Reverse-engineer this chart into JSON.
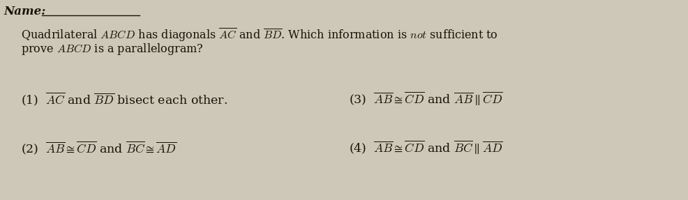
{
  "background_color": "#cec8b8",
  "text_color": "#1a1208",
  "name_label": "Name:",
  "font_size_name": 12,
  "font_size_question": 11.5,
  "font_size_options": 12.5
}
